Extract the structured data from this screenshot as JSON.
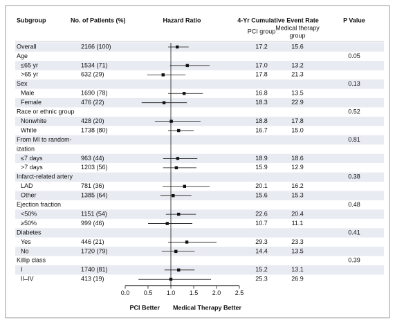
{
  "chart_data": {
    "type": "forest",
    "headers": {
      "subgroup": "Subgroup",
      "patients": "No. of Patients (%)",
      "hazard_ratio": "Hazard Ratio",
      "event_rate": "4-Yr Cumulative Event Rate",
      "pci_group": "PCI group",
      "medical_group": [
        "Medical therapy",
        "group"
      ],
      "p_value": "P Value"
    },
    "x_label_left": "PCI Better",
    "x_label_right": "Medical Therapy Better",
    "xlim": [
      0,
      2.5
    ],
    "xticks": [
      {
        "value": 0,
        "label": "0.0"
      },
      0.5,
      {
        "value": 1,
        "label": "1.0"
      },
      1.5,
      {
        "value": 2,
        "label": "2.0"
      },
      2.5
    ],
    "reference_line": 1,
    "marker_color": "#111111",
    "overall": {
      "label": [
        "Overall"
      ],
      "patients": "2166 (100)",
      "hr": 1.14,
      "ci": [
        0.94,
        1.39
      ],
      "pci": "17.2",
      "medical": "15.6"
    },
    "groups": [
      {
        "label": [
          "Age"
        ],
        "p_value": 0.05,
        "rows": [
          {
            "label": [
              "≤65 yr"
            ],
            "patients": "1534 (71)",
            "hr": 1.36,
            "ci": [
              0.98,
              1.85
            ],
            "pci": "17.0",
            "medical": "13.2"
          },
          {
            "label": [
              ">65 yr"
            ],
            "patients": "632 (29)",
            "hr": 0.83,
            "ci": [
              0.48,
              1.32
            ],
            "pci": "17.8",
            "medical": "21.3"
          }
        ]
      },
      {
        "label": [
          "Sex"
        ],
        "p_value": 0.13,
        "rows": [
          {
            "label": [
              "Male"
            ],
            "patients": "1690 (78)",
            "hr": 1.29,
            "ci": [
              0.94,
              1.7
            ],
            "pci": "16.8",
            "medical": "13.5"
          },
          {
            "label": [
              "Female"
            ],
            "patients": "476 (22)",
            "hr": 0.85,
            "ci": [
              0.36,
              1.35
            ],
            "pci": "18.3",
            "medical": "22.9"
          }
        ]
      },
      {
        "label": [
          "Race or ethnic group"
        ],
        "p_value": 0.52,
        "rows": [
          {
            "label": [
              "Nonwhite"
            ],
            "patients": "428 (20)",
            "hr": 1.01,
            "ci": [
              0.65,
              1.65
            ],
            "pci": "18.8",
            "medical": "17.8"
          },
          {
            "label": [
              "White"
            ],
            "patients": "1738 (80)",
            "hr": 1.17,
            "ci": [
              0.94,
              1.5
            ],
            "pci": "16.7",
            "medical": "15.0"
          }
        ]
      },
      {
        "label": [
          "From MI to random-",
          "ization"
        ],
        "p_value": 0.81,
        "rows": [
          {
            "label": [
              "≤7 days"
            ],
            "patients": "963 (44)",
            "hr": 1.15,
            "ci": [
              0.83,
              1.58
            ],
            "pci": "18.9",
            "medical": "18.6"
          },
          {
            "label": [
              ">7 days"
            ],
            "patients": "1203 (56)",
            "hr": 1.12,
            "ci": [
              0.83,
              1.56
            ],
            "pci": "15.9",
            "medical": "12.9"
          }
        ]
      },
      {
        "label": [
          "Infarct-related artery"
        ],
        "p_value": 0.38,
        "rows": [
          {
            "label": [
              "LAD"
            ],
            "patients": "781 (36)",
            "hr": 1.3,
            "ci": [
              0.82,
              1.85
            ],
            "pci": "20.1",
            "medical": "16.2"
          },
          {
            "label": [
              "Other"
            ],
            "patients": "1385 (64)",
            "hr": 1.05,
            "ci": [
              0.77,
              1.45
            ],
            "pci": "15.6",
            "medical": "15.3"
          }
        ]
      },
      {
        "label": [
          "Ejection fraction"
        ],
        "p_value": 0.48,
        "rows": [
          {
            "label": [
              "<50%"
            ],
            "patients": "1151 (54)",
            "hr": 1.17,
            "ci": [
              0.89,
              1.55
            ],
            "pci": "22.6",
            "medical": "20.4"
          },
          {
            "label": [
              "≥50%"
            ],
            "patients": "999 (46)",
            "hr": 0.92,
            "ci": [
              0.5,
              1.47
            ],
            "pci": "10.7",
            "medical": "11.1"
          }
        ]
      },
      {
        "label": [
          "Diabetes"
        ],
        "p_value": 0.41,
        "rows": [
          {
            "label": [
              "Yes"
            ],
            "patients": "446 (21)",
            "hr": 1.35,
            "ci": [
              0.94,
              2.0
            ],
            "pci": "29.3",
            "medical": "23.3"
          },
          {
            "label": [
              "No"
            ],
            "patients": "1720 (79)",
            "hr": 1.11,
            "ci": [
              0.8,
              1.52
            ],
            "pci": "14.4",
            "medical": "13.5"
          }
        ]
      },
      {
        "label": [
          "Killip class"
        ],
        "p_value": 0.39,
        "rows": [
          {
            "label": [
              "I"
            ],
            "patients": "1740 (81)",
            "hr": 1.17,
            "ci": [
              0.86,
              1.52
            ],
            "pci": "15.2",
            "medical": "13.1"
          },
          {
            "label": [
              "II–IV"
            ],
            "patients": "413 (19)",
            "hr": 1.0,
            "ci": [
              0.29,
              1.88
            ],
            "pci": "25.3",
            "medical": "26.9"
          }
        ]
      }
    ]
  }
}
